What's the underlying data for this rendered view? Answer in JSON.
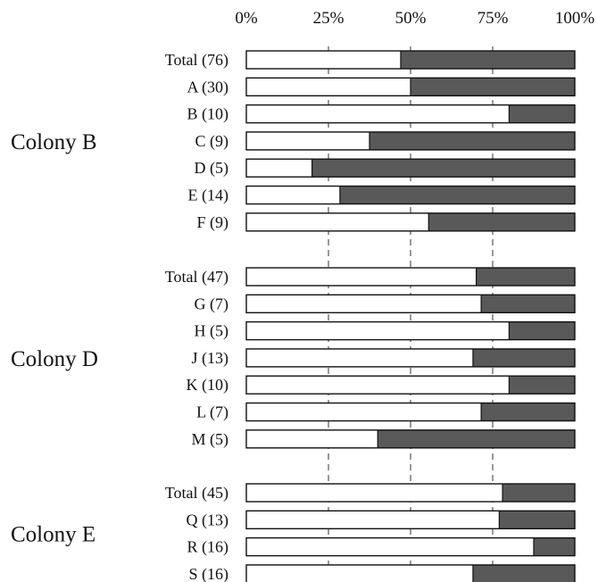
{
  "chart_data": {
    "type": "bar",
    "orientation": "horizontal",
    "stacked": "percent",
    "xlim": [
      0,
      100
    ],
    "tick_labels": [
      "0%",
      "25%",
      "50%",
      "75%",
      "100%"
    ],
    "tick_values": [
      0,
      25,
      50,
      75,
      100
    ],
    "grid": "vertical dashed at 25%, 50%, 75%",
    "colors": {
      "first_segment": "#ffffff",
      "second_segment": "#595959",
      "outline": "#111111"
    },
    "groups": [
      {
        "name": "Colony B",
        "bars": [
          {
            "label": "Total (76)",
            "value": 47
          },
          {
            "label": "A (30)",
            "value": 50
          },
          {
            "label": "B (10)",
            "value": 80
          },
          {
            "label": "C (9)",
            "value": 37.5
          },
          {
            "label": "D (5)",
            "value": 20
          },
          {
            "label": "E (14)",
            "value": 28.5
          },
          {
            "label": "F (9)",
            "value": 55.5
          }
        ]
      },
      {
        "name": "Colony D",
        "bars": [
          {
            "label": "Total (47)",
            "value": 70
          },
          {
            "label": "G (7)",
            "value": 71.5
          },
          {
            "label": "H (5)",
            "value": 80
          },
          {
            "label": "J (13)",
            "value": 69
          },
          {
            "label": "K (10)",
            "value": 80
          },
          {
            "label": "L (7)",
            "value": 71.5
          },
          {
            "label": "M (5)",
            "value": 40
          }
        ]
      },
      {
        "name": "Colony E",
        "bars": [
          {
            "label": "Total (45)",
            "value": 78
          },
          {
            "label": "Q (13)",
            "value": 77
          },
          {
            "label": "R (16)",
            "value": 87.5
          },
          {
            "label": "S (16)",
            "value": 69
          }
        ]
      }
    ]
  }
}
